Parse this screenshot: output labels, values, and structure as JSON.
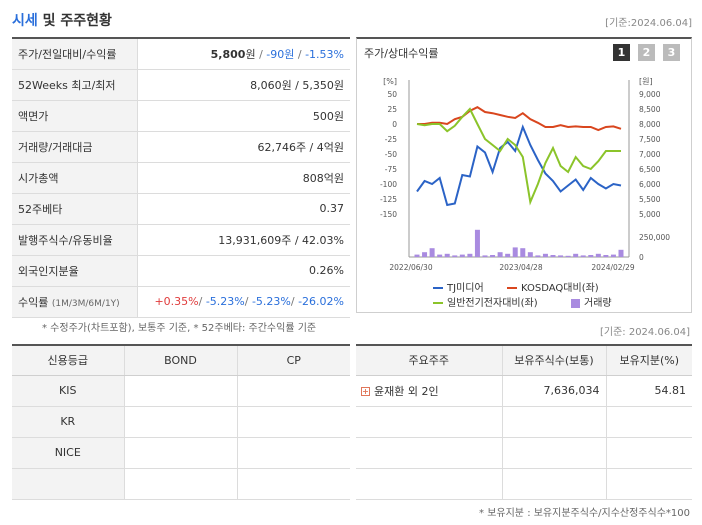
{
  "header": {
    "title_blue": "시세",
    "title_rest": "및 주주현황",
    "date": "[기준:2024.06.04]"
  },
  "quote": [
    {
      "label": "주가/전일대비/수익률",
      "parts": [
        {
          "t": "5,800",
          "c": "strong"
        },
        {
          "t": "원",
          "c": "unit"
        },
        {
          "t": " / ",
          "c": "slash"
        },
        {
          "t": "-90원",
          "c": "neg"
        },
        {
          "t": " / ",
          "c": "slash"
        },
        {
          "t": "-1.53%",
          "c": "neg"
        }
      ]
    },
    {
      "label": "52Weeks 최고/최저",
      "parts": [
        {
          "t": "8,060원 / 5,350원",
          "c": ""
        }
      ]
    },
    {
      "label": "액면가",
      "parts": [
        {
          "t": "500원",
          "c": ""
        }
      ]
    },
    {
      "label": "거래량/거래대금",
      "parts": [
        {
          "t": "62,746주 / 4억원",
          "c": ""
        }
      ]
    },
    {
      "label": "시가총액",
      "parts": [
        {
          "t": "808억원",
          "c": ""
        }
      ]
    },
    {
      "label": "52주베타",
      "parts": [
        {
          "t": "0.37",
          "c": ""
        }
      ]
    },
    {
      "label": "발행주식수/유동비율",
      "parts": [
        {
          "t": "13,931,609주 / 42.03%",
          "c": ""
        }
      ]
    },
    {
      "label": "외국인지분율",
      "parts": [
        {
          "t": "0.26%",
          "c": ""
        }
      ]
    },
    {
      "label": "수익률",
      "sub": "(1M/3M/6M/1Y)",
      "parts": [
        {
          "t": "+0.35%",
          "c": "pos"
        },
        {
          "t": "/ ",
          "c": "slash"
        },
        {
          "t": "-5.23%",
          "c": "neg"
        },
        {
          "t": "/ ",
          "c": "slash"
        },
        {
          "t": "-5.23%",
          "c": "neg"
        },
        {
          "t": "/ ",
          "c": "slash"
        },
        {
          "t": "-26.02%",
          "c": "neg"
        }
      ]
    }
  ],
  "left_note": "* 수정주가(차트포함), 보통주 기준, * 52주베타: 주간수익률 기준",
  "chart_panel": {
    "title": "주가/상대수익률",
    "tabs": [
      "1",
      "2",
      "3"
    ]
  },
  "chart_data": {
    "type": "line",
    "left_axis_unit": "[%]",
    "right_axis_unit": "[원]",
    "left_ticks": [
      "50",
      "25",
      "0",
      "-25",
      "-50",
      "-75",
      "-100",
      "-125",
      "-150"
    ],
    "right_ticks": [
      "9,000",
      "8,500",
      "8,000",
      "7,500",
      "7,000",
      "6,500",
      "6,000",
      "5,500",
      "5,000"
    ],
    "volume_ticks": [
      "250,000",
      "0"
    ],
    "x_labels": [
      "2022/06/30",
      "2023/04/28",
      "2024/02/29"
    ],
    "ylim_left": [
      -150,
      50
    ],
    "ylim_right": [
      5000,
      9000
    ],
    "series": [
      {
        "name": "TJ미디어",
        "color": "#2b63c6",
        "axis": "right",
        "values": [
          5750,
          6100,
          6000,
          6200,
          5300,
          5350,
          6300,
          6250,
          7250,
          7050,
          6400,
          7200,
          7400,
          7100,
          7900,
          7300,
          6800,
          6350,
          6100,
          5750,
          5950,
          6150,
          5800,
          6200,
          6000,
          5850,
          6000,
          5950
        ]
      },
      {
        "name": "KOSDAQ대비(좌)",
        "color": "#d9461e",
        "axis": "left",
        "values": [
          0,
          0,
          2,
          2,
          0,
          8,
          12,
          22,
          28,
          20,
          18,
          15,
          12,
          10,
          18,
          8,
          2,
          -5,
          -5,
          -2,
          -5,
          -4,
          -5,
          -5,
          -10,
          -5,
          -4,
          -8
        ]
      },
      {
        "name": "일반전기전자대비(좌)",
        "color": "#8bc42a",
        "axis": "left",
        "values": [
          0,
          -2,
          0,
          0,
          -12,
          -3,
          12,
          25,
          0,
          -25,
          -35,
          -45,
          -25,
          -35,
          -55,
          -130,
          -100,
          -65,
          -40,
          -70,
          -80,
          -55,
          -70,
          -75,
          -62,
          -45,
          -45,
          -45
        ]
      },
      {
        "name": "거래량",
        "color": "#a98be0",
        "axis": "volume",
        "values": [
          30000,
          60000,
          110000,
          30000,
          40000,
          20000,
          30000,
          40000,
          340000,
          20000,
          25000,
          60000,
          40000,
          120000,
          110000,
          60000,
          20000,
          40000,
          25000,
          20000,
          15000,
          40000,
          20000,
          25000,
          40000,
          25000,
          30000,
          90000
        ]
      }
    ]
  },
  "legend": {
    "tj": "TJ미디어",
    "kosdaq": "KOSDAQ대비(좌)",
    "elec": "일반전기전자대비(좌)",
    "vol": "거래량"
  },
  "right_date": "[기준: 2024.06.04]",
  "credit": {
    "headers": [
      "신용등급",
      "BOND",
      "CP"
    ],
    "rows": [
      [
        "KIS",
        "",
        ""
      ],
      [
        "KR",
        "",
        ""
      ],
      [
        "NICE",
        "",
        ""
      ],
      [
        "",
        "",
        ""
      ]
    ]
  },
  "holders": {
    "headers": [
      "주요주주",
      "보유주식수(보통)",
      "보유지분(%)"
    ],
    "rows": [
      [
        "윤재환 외 2인",
        "7,636,034",
        "54.81"
      ],
      [
        "",
        "",
        ""
      ],
      [
        "",
        "",
        ""
      ],
      [
        "",
        "",
        ""
      ]
    ]
  },
  "bottom_note": "* 보유지분 : 보유지분주식수/지수산정주식수*100"
}
